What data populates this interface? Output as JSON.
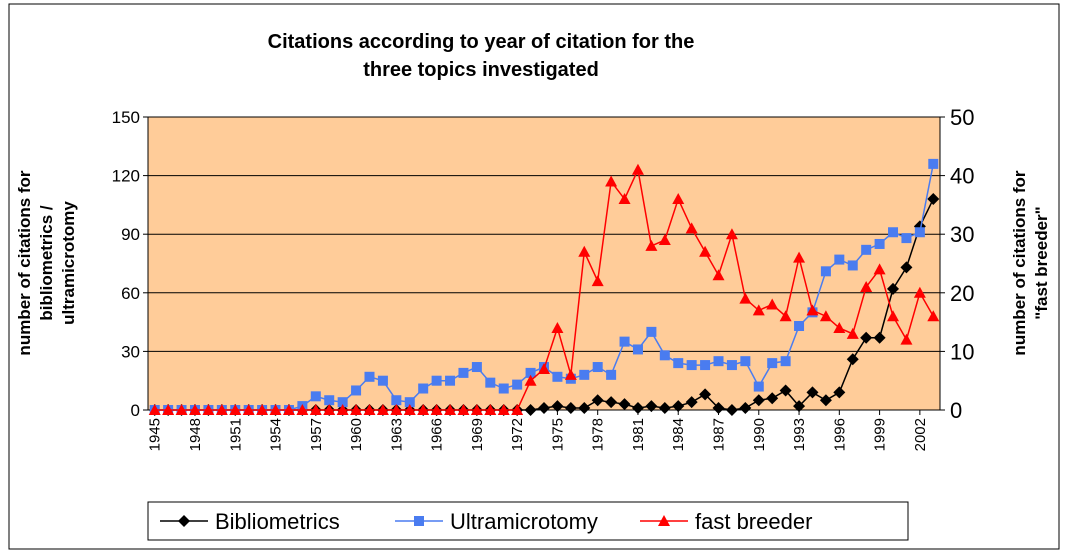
{
  "chart_data": {
    "type": "line",
    "title": [
      "Citations according to year of citation for the",
      "three topics investigated"
    ],
    "y_label": [
      "number of citations for",
      "bibliometrics /",
      "ultramicrotomy"
    ],
    "y2_label": [
      "number of citations for",
      "\"fast breeder\""
    ],
    "categories": [
      "1945",
      null,
      null,
      "1948",
      null,
      null,
      "1951",
      null,
      null,
      "1954",
      null,
      null,
      "1957",
      null,
      null,
      "1960",
      null,
      null,
      "1963",
      null,
      null,
      "1966",
      null,
      null,
      "1969",
      null,
      null,
      "1972",
      null,
      null,
      "1975",
      null,
      null,
      "1978",
      null,
      null,
      "1981",
      null,
      null,
      "1984",
      null,
      null,
      "1987",
      null,
      null,
      "1990",
      null,
      null,
      "1993",
      null,
      null,
      "1996",
      null,
      null,
      "1999",
      null,
      null,
      "2002",
      null
    ],
    "series": [
      {
        "name": "Bibliometrics",
        "color": "#000000",
        "marker": "diamond",
        "values": [
          0,
          0,
          0,
          0,
          0,
          0,
          0,
          0,
          0,
          0,
          0,
          0,
          0,
          0,
          0,
          0,
          0,
          0,
          0,
          0,
          0,
          0,
          0,
          0,
          0,
          0,
          0,
          0,
          0,
          1,
          2,
          1,
          1,
          5,
          4,
          3,
          1,
          2,
          1,
          2,
          4,
          8,
          1,
          0,
          1,
          5,
          6,
          10,
          2,
          9,
          5,
          9,
          26,
          37,
          37,
          62,
          73,
          94,
          108
        ]
      },
      {
        "name": "Ultramicrotomy",
        "color": "#4a7cf0",
        "marker": "square",
        "values": [
          0,
          0,
          0,
          0,
          0,
          0,
          0,
          0,
          0,
          0,
          0,
          2,
          7,
          5,
          4,
          10,
          17,
          15,
          5,
          4,
          11,
          15,
          15,
          19,
          22,
          14,
          11,
          13,
          19,
          22,
          17,
          16,
          18,
          22,
          18,
          35,
          31,
          40,
          28,
          24,
          23,
          23,
          25,
          23,
          25,
          12,
          24,
          25,
          43,
          50,
          71,
          77,
          74,
          82,
          85,
          91,
          88,
          91,
          126
        ]
      },
      {
        "name": "fast breeder",
        "color": "#ff0000",
        "marker": "triangle",
        "axis": "y2",
        "values": [
          0,
          0,
          0,
          0,
          0,
          0,
          0,
          0,
          0,
          0,
          0,
          0,
          0,
          0,
          0,
          0,
          0,
          0,
          0,
          0,
          0,
          0,
          0,
          0,
          0,
          0,
          0,
          0,
          5,
          7,
          14,
          6,
          27,
          22,
          39,
          36,
          41,
          28,
          29,
          36,
          31,
          27,
          23,
          30,
          19,
          17,
          18,
          16,
          26,
          17,
          16,
          14,
          13,
          21,
          24,
          16,
          12,
          20,
          16
        ]
      }
    ],
    "ylim": [
      0,
      150
    ],
    "yticks": [
      0,
      30,
      60,
      90,
      120,
      150
    ],
    "y2lim": [
      0,
      50
    ],
    "y2ticks": [
      0,
      10,
      20,
      30,
      40,
      50
    ],
    "grid": true,
    "legend": "bottom",
    "plot_background": "#ffcc99"
  }
}
